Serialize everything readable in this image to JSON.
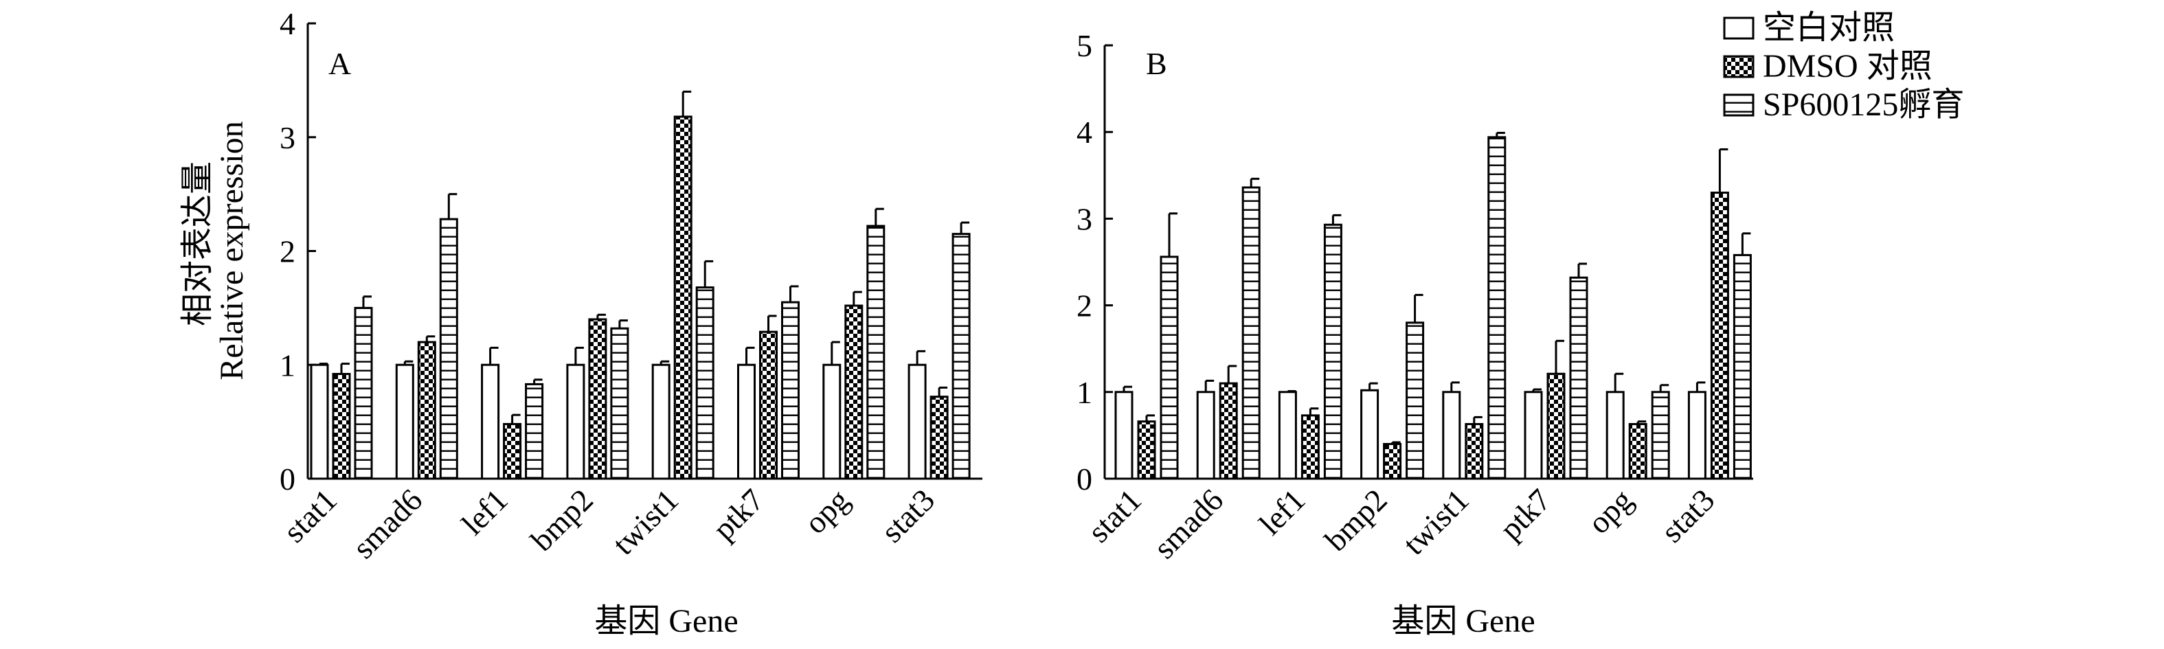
{
  "chart_data": [
    {
      "type": "bar",
      "panel_label": "A",
      "ylabel_cn": "相对表达量",
      "ylabel": "Relative expression",
      "xlabel": "基因 Gene",
      "ylim": [
        0,
        4
      ],
      "yticks": [
        "0",
        "1",
        "2",
        "3",
        "4"
      ],
      "categories": [
        "stat1",
        "smad6",
        "lef1",
        "bmp2",
        "twist1",
        "ptk7",
        "opg",
        "stat3"
      ],
      "series": [
        {
          "name": "空白对照",
          "values": [
            1.0,
            1.0,
            1.0,
            1.0,
            1.0,
            1.0,
            1.0,
            1.0
          ],
          "errors": [
            0.01,
            0.03,
            0.15,
            0.15,
            0.03,
            0.15,
            0.2,
            0.12
          ]
        },
        {
          "name": "DMSO 对照",
          "values": [
            0.92,
            1.2,
            0.48,
            1.4,
            3.18,
            1.29,
            1.52,
            0.72
          ],
          "errors": [
            0.09,
            0.05,
            0.08,
            0.04,
            0.22,
            0.14,
            0.12,
            0.08
          ]
        },
        {
          "name": "SP600125孵育",
          "values": [
            1.5,
            2.28,
            0.83,
            1.32,
            1.68,
            1.55,
            2.22,
            2.15
          ],
          "errors": [
            0.1,
            0.22,
            0.04,
            0.07,
            0.23,
            0.14,
            0.15,
            0.1
          ]
        }
      ]
    },
    {
      "type": "bar",
      "panel_label": "B",
      "xlabel": "基因 Gene",
      "ylim": [
        0,
        5
      ],
      "yticks": [
        "0",
        "1",
        "2",
        "3",
        "4",
        "5"
      ],
      "categories": [
        "stat1",
        "smad6",
        "lef1",
        "bmp2",
        "twist1",
        "ptk7",
        "opg",
        "stat3"
      ],
      "series": [
        {
          "name": "空白对照",
          "values": [
            1.0,
            1.0,
            1.0,
            1.02,
            1.0,
            1.0,
            1.0,
            1.0
          ],
          "errors": [
            0.06,
            0.13,
            0.01,
            0.08,
            0.11,
            0.03,
            0.21,
            0.11
          ]
        },
        {
          "name": "DMSO 对照",
          "values": [
            0.66,
            1.1,
            0.73,
            0.4,
            0.63,
            1.21,
            0.63,
            3.3
          ],
          "errors": [
            0.07,
            0.2,
            0.08,
            0.02,
            0.08,
            0.38,
            0.03,
            0.5
          ]
        },
        {
          "name": "SP600125孵育",
          "values": [
            2.56,
            3.36,
            2.93,
            1.8,
            3.94,
            2.32,
            1.0,
            2.58
          ],
          "errors": [
            0.5,
            0.1,
            0.11,
            0.32,
            0.05,
            0.16,
            0.08,
            0.25
          ]
        }
      ]
    }
  ],
  "legend": {
    "position": "top-right",
    "items": [
      {
        "label": "空白对照",
        "pattern": "open"
      },
      {
        "label": "DMSO 对照",
        "pattern": "checker"
      },
      {
        "label": "SP600125孵育",
        "pattern": "horizontal-lines"
      }
    ]
  }
}
